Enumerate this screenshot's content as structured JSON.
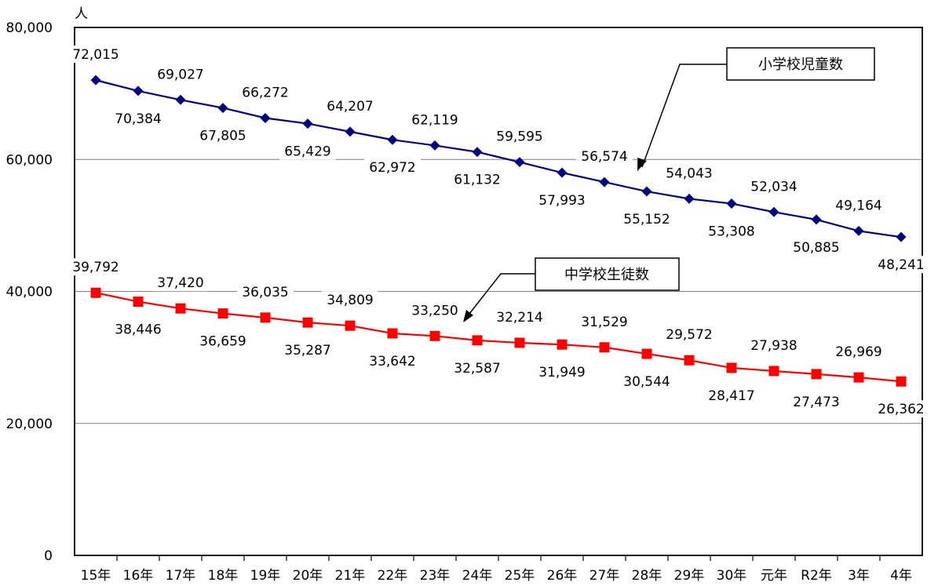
{
  "chart_data": {
    "type": "line",
    "y_unit": "人",
    "ylim": [
      0,
      80000
    ],
    "yticks": [
      0,
      20000,
      40000,
      60000,
      80000
    ],
    "ytick_labels": [
      "0",
      "20,000",
      "40,000",
      "60,000",
      "80,000"
    ],
    "grid": "horizontal",
    "categories": [
      "15年",
      "16年",
      "17年",
      "18年",
      "19年",
      "20年",
      "21年",
      "22年",
      "23年",
      "24年",
      "25年",
      "26年",
      "27年",
      "28年",
      "29年",
      "30年",
      "元年",
      "R2年",
      "3年",
      "4年"
    ],
    "series": [
      {
        "name": "小学校児童数",
        "color": "#000080",
        "marker": "diamond",
        "values": [
          72015,
          70384,
          69027,
          67805,
          66272,
          65429,
          64207,
          62972,
          62119,
          61132,
          59595,
          57993,
          56574,
          55152,
          54043,
          53308,
          52034,
          50885,
          49164,
          48241
        ],
        "labels": [
          "72,015",
          "70,384",
          "69,027",
          "67,805",
          "66,272",
          "65,429",
          "64,207",
          "62,972",
          "62,119",
          "61,132",
          "59,595",
          "57,993",
          "56,574",
          "55,152",
          "54,043",
          "53,308",
          "52,034",
          "50,885",
          "49,164",
          "48,241"
        ],
        "label_side": [
          "above",
          "below",
          "above",
          "below",
          "above",
          "below",
          "above",
          "below",
          "above",
          "below",
          "above",
          "below",
          "above",
          "below",
          "above",
          "below",
          "above",
          "below",
          "above",
          "below"
        ]
      },
      {
        "name": "中学校生徒数",
        "color": "#ff0000",
        "marker": "square",
        "values": [
          39792,
          38446,
          37420,
          36659,
          36035,
          35287,
          34809,
          33642,
          33250,
          32587,
          32214,
          31949,
          31529,
          30544,
          29572,
          28417,
          27938,
          27473,
          26969,
          26362
        ],
        "labels": [
          "39,792",
          "38,446",
          "37,420",
          "36,659",
          "36,035",
          "35,287",
          "34,809",
          "33,642",
          "33,250",
          "32,587",
          "32,214",
          "31,949",
          "31,529",
          "30,544",
          "29,572",
          "28,417",
          "27,938",
          "27,473",
          "26,969",
          "26,362"
        ],
        "label_side": [
          "above",
          "below",
          "above",
          "below",
          "above",
          "below",
          "above",
          "below",
          "above",
          "below",
          "above",
          "below",
          "above",
          "below",
          "above",
          "below",
          "above",
          "below",
          "above",
          "below"
        ]
      }
    ]
  }
}
